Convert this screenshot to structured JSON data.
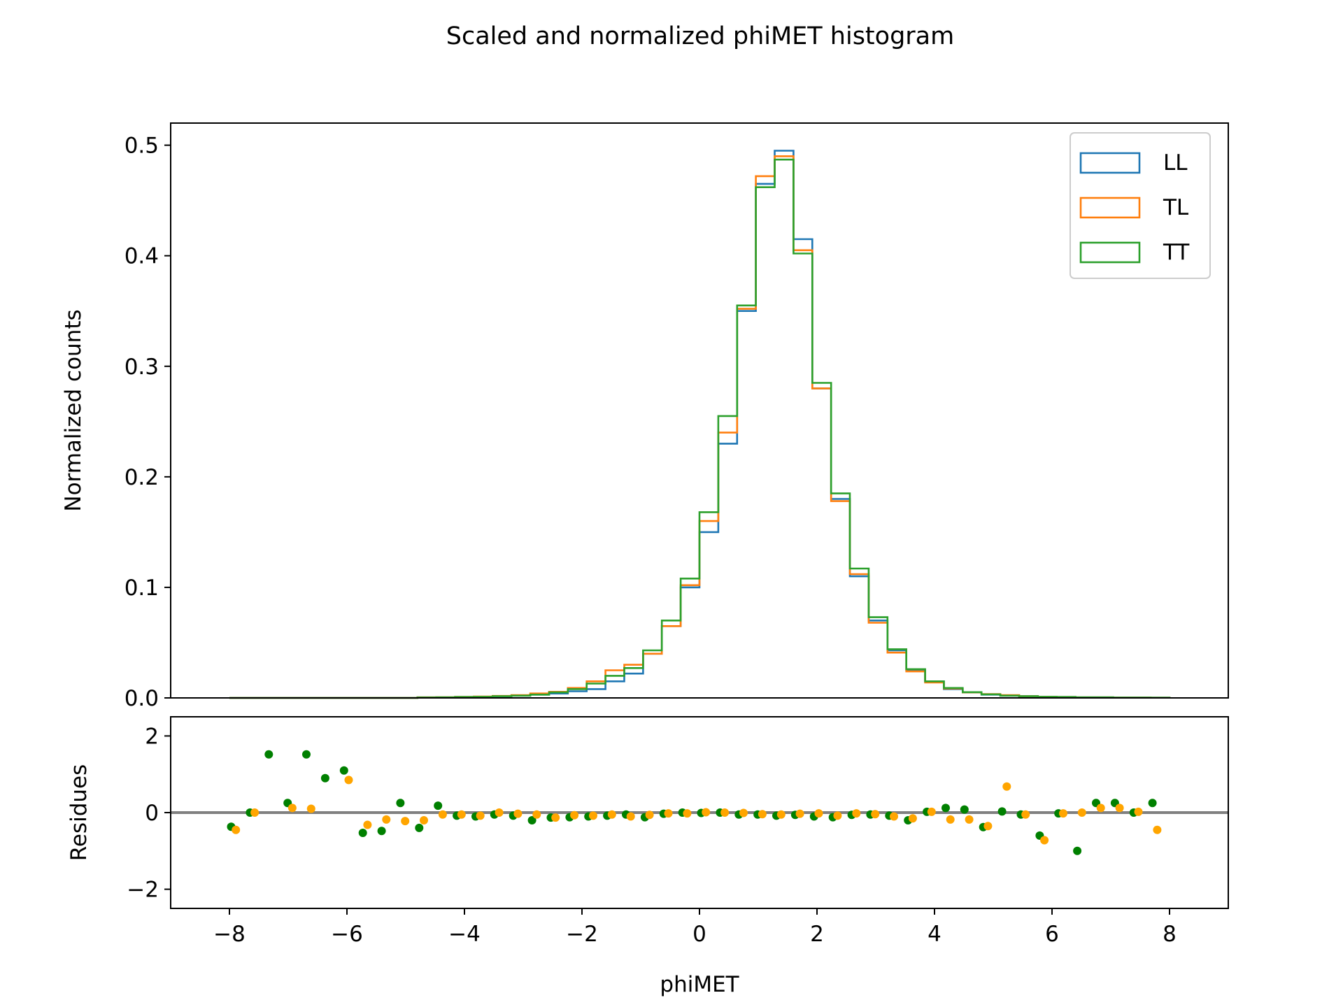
{
  "title": "Scaled and normalized phiMET histogram",
  "chart_data": [
    {
      "type": "histogram",
      "title": "Scaled and normalized phiMET histogram",
      "ylabel": "Normalized counts",
      "xlim": [
        -9,
        9
      ],
      "ylim": [
        0,
        0.52
      ],
      "yticks": [
        0.0,
        0.1,
        0.2,
        0.3,
        0.4,
        0.5
      ],
      "ytick_labels": [
        "0.0",
        "0.1",
        "0.2",
        "0.3",
        "0.4",
        "0.5"
      ],
      "grid": false,
      "legend": "top-right",
      "bin_start": -8,
      "bin_width": 0.32,
      "series": [
        {
          "name": "LL",
          "color": "#1f77b4",
          "values": [
            0,
            0,
            0,
            0,
            0,
            0,
            0,
            0,
            0,
            0,
            0.0005,
            0.0005,
            0.0008,
            0.001,
            0.0015,
            0.002,
            0.003,
            0.004,
            0.006,
            0.008,
            0.015,
            0.022,
            0.04,
            0.065,
            0.1,
            0.15,
            0.23,
            0.35,
            0.465,
            0.495,
            0.415,
            0.28,
            0.18,
            0.11,
            0.07,
            0.043,
            0.025,
            0.015,
            0.008,
            0.005,
            0.003,
            0.002,
            0.0015,
            0.001,
            0.0008,
            0.0005,
            0.0005,
            0.0003,
            0.0003,
            0.0002
          ]
        },
        {
          "name": "TL",
          "color": "#ff7f0e",
          "values": [
            0,
            0,
            0,
            0,
            0,
            0,
            0,
            0,
            0,
            0,
            0.0005,
            0.0006,
            0.0009,
            0.0012,
            0.0018,
            0.0025,
            0.004,
            0.0055,
            0.009,
            0.015,
            0.025,
            0.03,
            0.04,
            0.065,
            0.102,
            0.16,
            0.24,
            0.352,
            0.472,
            0.49,
            0.405,
            0.28,
            0.178,
            0.112,
            0.068,
            0.041,
            0.024,
            0.014,
            0.0085,
            0.005,
            0.0035,
            0.0025,
            0.0015,
            0.001,
            0.0008,
            0.0005,
            0.0005,
            0.0003,
            0.0003,
            0.0002
          ]
        },
        {
          "name": "TT",
          "color": "#2ca02c",
          "values": [
            0,
            0,
            0,
            0,
            0,
            0,
            0,
            0,
            0,
            0,
            0.0004,
            0.0005,
            0.0008,
            0.001,
            0.0015,
            0.002,
            0.003,
            0.005,
            0.008,
            0.013,
            0.02,
            0.027,
            0.043,
            0.07,
            0.108,
            0.168,
            0.255,
            0.355,
            0.462,
            0.487,
            0.402,
            0.285,
            0.185,
            0.117,
            0.073,
            0.044,
            0.026,
            0.015,
            0.009,
            0.0052,
            0.0032,
            0.002,
            0.0015,
            0.001,
            0.0008,
            0.0005,
            0.0005,
            0.0003,
            0.0003,
            0.0002
          ]
        }
      ]
    },
    {
      "type": "scatter",
      "xlabel": "phiMET",
      "ylabel": "Residues",
      "xlim": [
        -9,
        9
      ],
      "ylim": [
        -2.5,
        2.5
      ],
      "xticks": [
        -8,
        -6,
        -4,
        -2,
        0,
        2,
        4,
        6,
        8
      ],
      "xtick_labels": [
        "−8",
        "−6",
        "−4",
        "−2",
        "0",
        "2",
        "4",
        "6",
        "8"
      ],
      "yticks": [
        -2,
        0,
        2
      ],
      "ytick_labels": [
        "−2",
        "0",
        "2"
      ],
      "reference_line": 0,
      "grid": false,
      "series": [
        {
          "color": "#008000",
          "points": [
            [
              -7.97,
              -0.37
            ],
            [
              -7.65,
              0.0
            ],
            [
              -7.33,
              1.52
            ],
            [
              -7.01,
              0.25
            ],
            [
              -6.69,
              1.52
            ],
            [
              -6.37,
              0.9
            ],
            [
              -6.05,
              1.1
            ],
            [
              -5.73,
              -0.53
            ],
            [
              -5.41,
              -0.48
            ],
            [
              -5.09,
              0.25
            ],
            [
              -4.77,
              -0.4
            ],
            [
              -4.45,
              0.18
            ],
            [
              -4.13,
              -0.08
            ],
            [
              -3.81,
              -0.1
            ],
            [
              -3.49,
              -0.05
            ],
            [
              -3.17,
              -0.08
            ],
            [
              -2.85,
              -0.2
            ],
            [
              -2.53,
              -0.13
            ],
            [
              -2.21,
              -0.12
            ],
            [
              -1.89,
              -0.1
            ],
            [
              -1.57,
              -0.08
            ],
            [
              -1.25,
              -0.05
            ],
            [
              -0.93,
              -0.12
            ],
            [
              -0.61,
              -0.03
            ],
            [
              -0.29,
              0.0
            ],
            [
              0.03,
              -0.01
            ],
            [
              0.35,
              0.0
            ],
            [
              0.67,
              -0.05
            ],
            [
              0.99,
              -0.05
            ],
            [
              1.31,
              -0.08
            ],
            [
              1.63,
              -0.06
            ],
            [
              1.95,
              -0.1
            ],
            [
              2.27,
              -0.12
            ],
            [
              2.59,
              -0.06
            ],
            [
              2.91,
              -0.05
            ],
            [
              3.23,
              -0.08
            ],
            [
              3.55,
              -0.2
            ],
            [
              3.87,
              0.02
            ],
            [
              4.19,
              0.12
            ],
            [
              4.51,
              0.08
            ],
            [
              4.83,
              -0.38
            ],
            [
              5.15,
              0.03
            ],
            [
              5.47,
              -0.05
            ],
            [
              5.79,
              -0.6
            ],
            [
              6.11,
              -0.02
            ],
            [
              6.43,
              -1.0
            ],
            [
              6.75,
              0.25
            ],
            [
              7.07,
              0.25
            ],
            [
              7.39,
              0.0
            ],
            [
              7.71,
              0.25
            ]
          ]
        },
        {
          "color": "#ffa500",
          "points": [
            [
              -7.89,
              -0.45
            ],
            [
              -7.57,
              0.0
            ],
            [
              -6.93,
              0.12
            ],
            [
              -6.61,
              0.1
            ],
            [
              -5.97,
              0.85
            ],
            [
              -5.65,
              -0.32
            ],
            [
              -5.33,
              -0.18
            ],
            [
              -5.01,
              -0.22
            ],
            [
              -4.69,
              -0.2
            ],
            [
              -4.37,
              -0.05
            ],
            [
              -4.05,
              -0.05
            ],
            [
              -3.73,
              -0.08
            ],
            [
              -3.41,
              0.0
            ],
            [
              -3.09,
              -0.03
            ],
            [
              -2.77,
              -0.05
            ],
            [
              -2.45,
              -0.13
            ],
            [
              -2.13,
              -0.07
            ],
            [
              -1.81,
              -0.08
            ],
            [
              -1.49,
              -0.05
            ],
            [
              -1.17,
              -0.1
            ],
            [
              -0.85,
              -0.06
            ],
            [
              -0.53,
              -0.02
            ],
            [
              -0.21,
              -0.02
            ],
            [
              0.11,
              0.01
            ],
            [
              0.43,
              0.0
            ],
            [
              0.75,
              -0.01
            ],
            [
              1.07,
              -0.04
            ],
            [
              1.39,
              -0.05
            ],
            [
              1.71,
              -0.03
            ],
            [
              2.03,
              -0.02
            ],
            [
              2.35,
              -0.08
            ],
            [
              2.67,
              -0.02
            ],
            [
              2.99,
              -0.04
            ],
            [
              3.31,
              -0.1
            ],
            [
              3.63,
              -0.15
            ],
            [
              3.95,
              0.02
            ],
            [
              4.27,
              -0.18
            ],
            [
              4.59,
              -0.18
            ],
            [
              4.91,
              -0.35
            ],
            [
              5.23,
              0.68
            ],
            [
              5.55,
              -0.05
            ],
            [
              5.87,
              -0.72
            ],
            [
              6.19,
              -0.02
            ],
            [
              6.51,
              0.0
            ],
            [
              6.83,
              0.12
            ],
            [
              7.15,
              0.12
            ],
            [
              7.47,
              0.02
            ],
            [
              7.79,
              -0.45
            ]
          ]
        }
      ]
    }
  ]
}
